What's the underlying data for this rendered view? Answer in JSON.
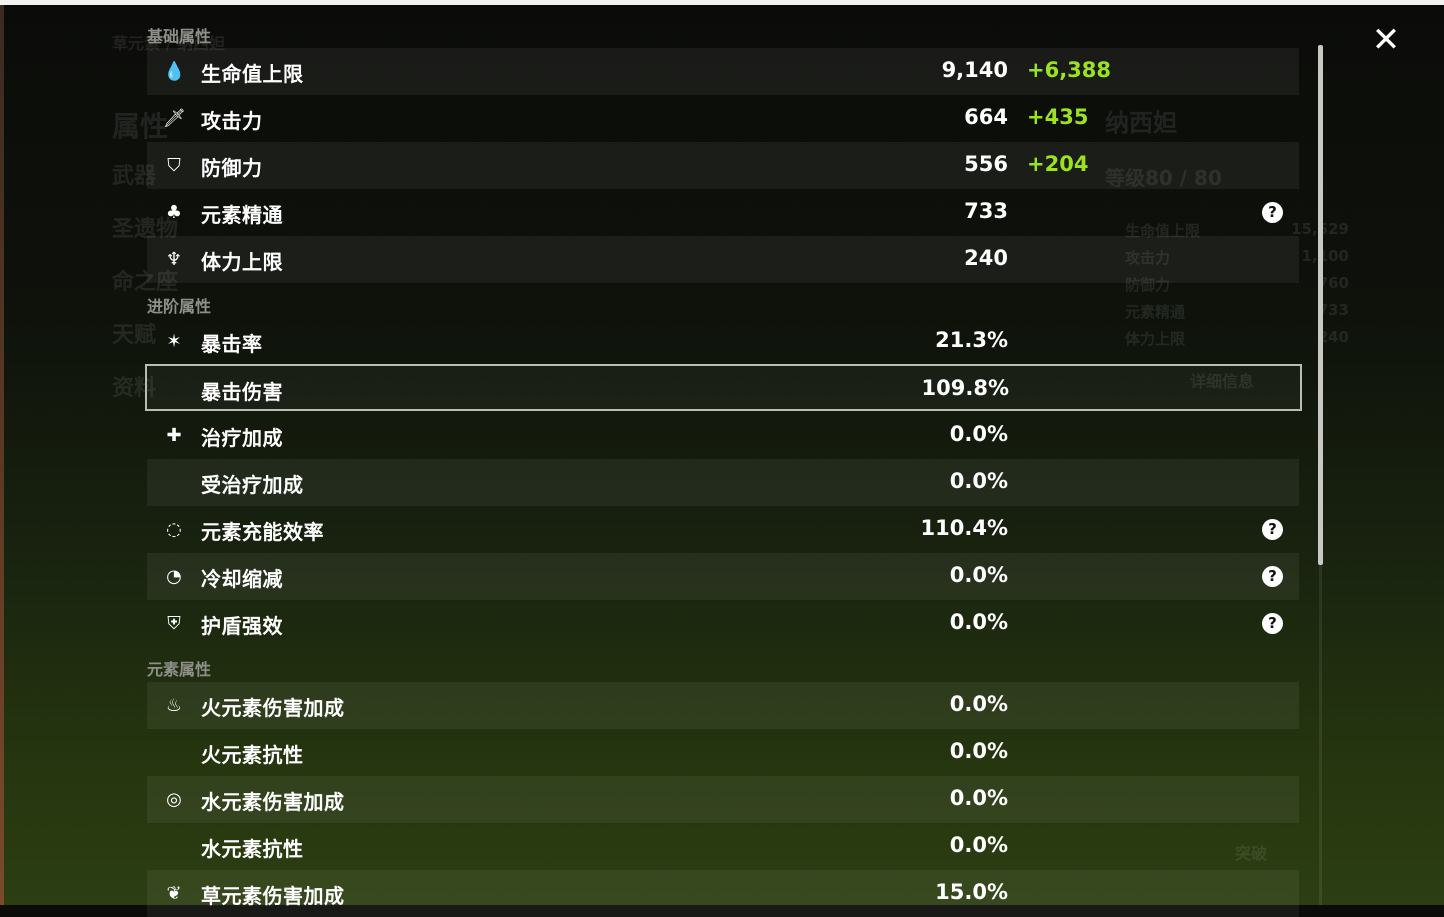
{
  "background": {
    "char_name": "纳西妲",
    "level": "等级80 / 80",
    "menu": [
      "属性",
      "武器",
      "圣遗物",
      "命之座",
      "天赋",
      "资料"
    ],
    "detail": "详细信息",
    "breakthrough": "突破",
    "summary": [
      [
        "生命值上限",
        "15,529"
      ],
      [
        "攻击力",
        "1,100"
      ],
      [
        "防御力",
        "760"
      ],
      [
        "元素精通",
        "733"
      ],
      [
        "体力上限",
        "240"
      ]
    ],
    "element_title": "草元素 / 纳西妲"
  },
  "close_icon": "close-icon",
  "sections": [
    {
      "title": "基础属性",
      "rows": [
        {
          "icon": "hp-drop-icon",
          "glyph": "💧",
          "label": "生命值上限",
          "value": "9,140",
          "bonus": "+6,388",
          "bg": "light"
        },
        {
          "icon": "sword-icon",
          "glyph": "🗡",
          "label": "攻击力",
          "value": "664",
          "bonus": "+435",
          "bg": "dark"
        },
        {
          "icon": "shield-icon",
          "glyph": "⛉",
          "label": "防御力",
          "value": "556",
          "bonus": "+204",
          "bg": "light"
        },
        {
          "icon": "elemental-mastery-icon",
          "glyph": "♣",
          "label": "元素精通",
          "value": "733",
          "help": true,
          "bg": "dark"
        },
        {
          "icon": "stamina-icon",
          "glyph": "♆",
          "label": "体力上限",
          "value": "240",
          "bg": "light"
        }
      ]
    },
    {
      "title": "进阶属性",
      "rows": [
        {
          "icon": "crit-rate-icon",
          "glyph": "✶",
          "label": "暴击率",
          "value": "21.3%",
          "bg": "dark"
        },
        {
          "icon": "crit-dmg-icon",
          "glyph": "",
          "label": "暴击伤害",
          "value": "109.8%",
          "bg": "sel"
        },
        {
          "icon": "healing-cross-icon",
          "glyph": "✚",
          "label": "治疗加成",
          "value": "0.0%",
          "bg": "dark"
        },
        {
          "icon": "",
          "glyph": "",
          "label": "受治疗加成",
          "value": "0.0%",
          "bg": "light"
        },
        {
          "icon": "energy-recharge-icon",
          "glyph": "◌",
          "label": "元素充能效率",
          "value": "110.4%",
          "help": true,
          "bg": "dark"
        },
        {
          "icon": "cooldown-icon",
          "glyph": "◔",
          "label": "冷却缩减",
          "value": "0.0%",
          "help": true,
          "bg": "light"
        },
        {
          "icon": "shield-strength-icon",
          "glyph": "⛨",
          "label": "护盾强效",
          "value": "0.0%",
          "help": true,
          "bg": "dark"
        }
      ]
    },
    {
      "title": "元素属性",
      "rows": [
        {
          "icon": "pyro-icon",
          "glyph": "♨",
          "label": "火元素伤害加成",
          "value": "0.0%",
          "bg": "light"
        },
        {
          "icon": "",
          "glyph": "",
          "label": "火元素抗性",
          "value": "0.0%",
          "bg": "dark"
        },
        {
          "icon": "hydro-icon",
          "glyph": "◎",
          "label": "水元素伤害加成",
          "value": "0.0%",
          "bg": "light"
        },
        {
          "icon": "",
          "glyph": "",
          "label": "水元素抗性",
          "value": "0.0%",
          "bg": "dark"
        },
        {
          "icon": "dendro-icon",
          "glyph": "❦",
          "label": "草元素伤害加成",
          "value": "15.0%",
          "bg": "light"
        }
      ]
    }
  ]
}
